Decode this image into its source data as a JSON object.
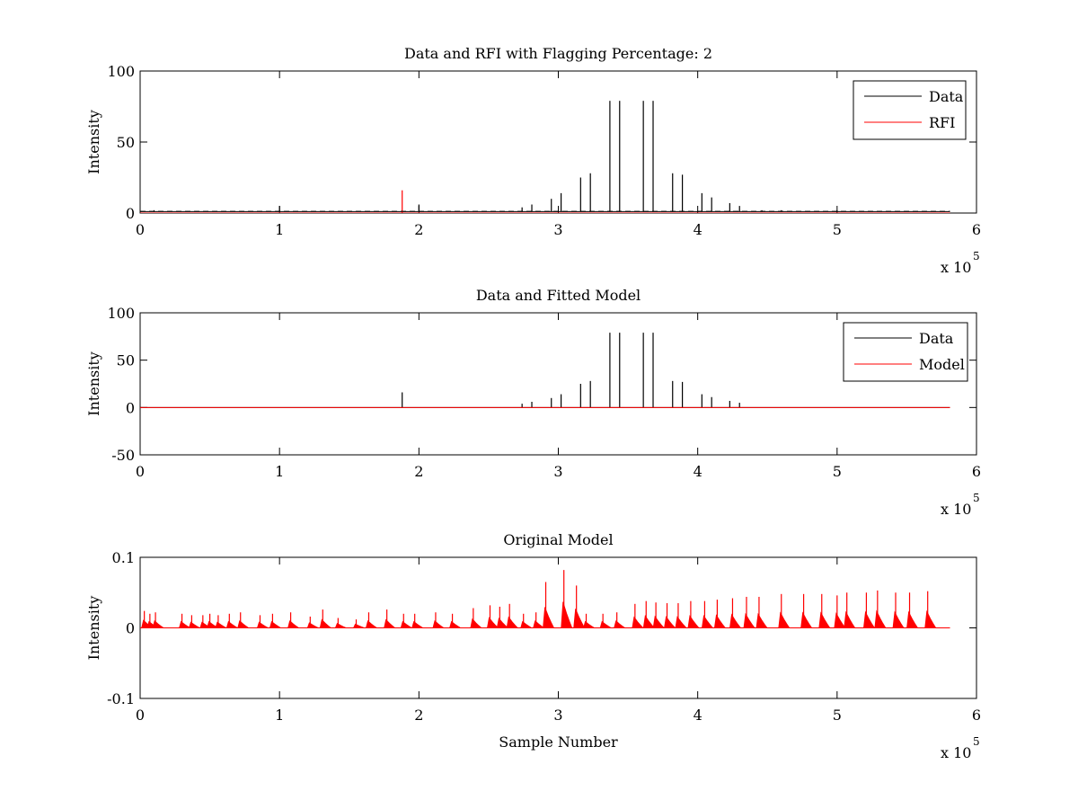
{
  "chart_data": [
    {
      "type": "line",
      "title": "Data and RFI with Flagging Percentage: 2",
      "xlabel": "",
      "ylabel": "Intensity",
      "xlim": [
        0,
        600000
      ],
      "ylim": [
        0,
        100
      ],
      "xtick_labels": [
        "0",
        "1",
        "2",
        "3",
        "4",
        "5",
        "6"
      ],
      "ytick_labels": [
        "0",
        "50",
        "100"
      ],
      "x_exponent": "x 10",
      "x_exponent_power": "5",
      "grid": false,
      "legend_position": "top-right",
      "series": [
        {
          "name": "Data",
          "color": "#000000",
          "baseline": 1,
          "spikes": [
            {
              "x": 10000,
              "y": 2
            },
            {
              "x": 100000,
              "y": 5
            },
            {
              "x": 200000,
              "y": 6
            },
            {
              "x": 274000,
              "y": 4
            },
            {
              "x": 281000,
              "y": 6
            },
            {
              "x": 295000,
              "y": 10
            },
            {
              "x": 302000,
              "y": 14
            },
            {
              "x": 316000,
              "y": 25
            },
            {
              "x": 323000,
              "y": 28
            },
            {
              "x": 337000,
              "y": 79
            },
            {
              "x": 344000,
              "y": 79
            },
            {
              "x": 361000,
              "y": 79
            },
            {
              "x": 368000,
              "y": 79
            },
            {
              "x": 382000,
              "y": 28
            },
            {
              "x": 389000,
              "y": 27
            },
            {
              "x": 403000,
              "y": 14
            },
            {
              "x": 410000,
              "y": 11
            },
            {
              "x": 423000,
              "y": 7
            },
            {
              "x": 430000,
              "y": 5
            },
            {
              "x": 446000,
              "y": 2
            },
            {
              "x": 460000,
              "y": 2
            },
            {
              "x": 500000,
              "y": 2
            }
          ]
        },
        {
          "name": "RFI",
          "color": "#ff0000",
          "baseline": 0,
          "spikes": [
            {
              "x": 188000,
              "y": 16
            }
          ]
        }
      ],
      "x_end": 581000
    },
    {
      "type": "line",
      "title": "Data and Fitted Model",
      "xlabel": "",
      "ylabel": "Intensity",
      "xlim": [
        0,
        600000
      ],
      "ylim": [
        -50,
        100
      ],
      "xtick_labels": [
        "0",
        "1",
        "2",
        "3",
        "4",
        "5",
        "6"
      ],
      "ytick_labels": [
        "-50",
        "0",
        "50",
        "100"
      ],
      "x_exponent": "x 10",
      "x_exponent_power": "5",
      "grid": false,
      "legend_position": "top-right",
      "series": [
        {
          "name": "Data",
          "color": "#000000",
          "baseline": 0,
          "spikes": [
            {
              "x": 188000,
              "y": 16
            },
            {
              "x": 274000,
              "y": 4
            },
            {
              "x": 281000,
              "y": 6
            },
            {
              "x": 295000,
              "y": 10
            },
            {
              "x": 302000,
              "y": 14
            },
            {
              "x": 316000,
              "y": 25
            },
            {
              "x": 323000,
              "y": 28
            },
            {
              "x": 337000,
              "y": 79
            },
            {
              "x": 344000,
              "y": 79
            },
            {
              "x": 361000,
              "y": 79
            },
            {
              "x": 368000,
              "y": 79
            },
            {
              "x": 382000,
              "y": 28
            },
            {
              "x": 389000,
              "y": 27
            },
            {
              "x": 403000,
              "y": 14
            },
            {
              "x": 410000,
              "y": 11
            },
            {
              "x": 423000,
              "y": 7
            },
            {
              "x": 430000,
              "y": 5
            }
          ]
        },
        {
          "name": "Model",
          "color": "#ff0000",
          "baseline": 0,
          "spikes": []
        }
      ],
      "x_end": 581000
    },
    {
      "type": "line",
      "title": "Original Model",
      "xlabel": "Sample Number",
      "ylabel": "Intensity",
      "xlim": [
        0,
        600000
      ],
      "ylim": [
        -0.1,
        0.1
      ],
      "xtick_labels": [
        "0",
        "1",
        "2",
        "3",
        "4",
        "5",
        "6"
      ],
      "ytick_labels": [
        "-0.1",
        "0",
        "0.1"
      ],
      "x_exponent": "x 10",
      "x_exponent_power": "5",
      "grid": false,
      "series": [
        {
          "color": "#ff0000",
          "baseline": 0,
          "peaks": [
            {
              "x": 3000,
              "y": 0.024
            },
            {
              "x": 7000,
              "y": 0.02
            },
            {
              "x": 11000,
              "y": 0.022
            },
            {
              "x": 30000,
              "y": 0.02
            },
            {
              "x": 37000,
              "y": 0.018
            },
            {
              "x": 45000,
              "y": 0.018
            },
            {
              "x": 50000,
              "y": 0.02
            },
            {
              "x": 56000,
              "y": 0.018
            },
            {
              "x": 64000,
              "y": 0.02
            },
            {
              "x": 72000,
              "y": 0.022
            },
            {
              "x": 86000,
              "y": 0.018
            },
            {
              "x": 95000,
              "y": 0.02
            },
            {
              "x": 108000,
              "y": 0.022
            },
            {
              "x": 122000,
              "y": 0.016
            },
            {
              "x": 131000,
              "y": 0.026
            },
            {
              "x": 142000,
              "y": 0.014
            },
            {
              "x": 155000,
              "y": 0.012
            },
            {
              "x": 164000,
              "y": 0.022
            },
            {
              "x": 177000,
              "y": 0.026
            },
            {
              "x": 189000,
              "y": 0.02
            },
            {
              "x": 197000,
              "y": 0.02
            },
            {
              "x": 212000,
              "y": 0.022
            },
            {
              "x": 224000,
              "y": 0.02
            },
            {
              "x": 239000,
              "y": 0.028
            },
            {
              "x": 251000,
              "y": 0.032
            },
            {
              "x": 258000,
              "y": 0.03
            },
            {
              "x": 265000,
              "y": 0.034
            },
            {
              "x": 275000,
              "y": 0.02
            },
            {
              "x": 284000,
              "y": 0.022
            },
            {
              "x": 291000,
              "y": 0.065
            },
            {
              "x": 304000,
              "y": 0.082
            },
            {
              "x": 313000,
              "y": 0.06
            },
            {
              "x": 320000,
              "y": 0.02
            },
            {
              "x": 332000,
              "y": 0.02
            },
            {
              "x": 342000,
              "y": 0.022
            },
            {
              "x": 355000,
              "y": 0.034
            },
            {
              "x": 363000,
              "y": 0.038
            },
            {
              "x": 370000,
              "y": 0.036
            },
            {
              "x": 378000,
              "y": 0.035
            },
            {
              "x": 386000,
              "y": 0.035
            },
            {
              "x": 395000,
              "y": 0.038
            },
            {
              "x": 405000,
              "y": 0.038
            },
            {
              "x": 414000,
              "y": 0.04
            },
            {
              "x": 425000,
              "y": 0.042
            },
            {
              "x": 435000,
              "y": 0.044
            },
            {
              "x": 444000,
              "y": 0.044
            },
            {
              "x": 460000,
              "y": 0.048
            },
            {
              "x": 476000,
              "y": 0.048
            },
            {
              "x": 489000,
              "y": 0.048
            },
            {
              "x": 500000,
              "y": 0.046
            },
            {
              "x": 507000,
              "y": 0.05
            },
            {
              "x": 521000,
              "y": 0.05
            },
            {
              "x": 529000,
              "y": 0.053
            },
            {
              "x": 542000,
              "y": 0.05
            },
            {
              "x": 552000,
              "y": 0.05
            },
            {
              "x": 565000,
              "y": 0.052
            }
          ]
        }
      ],
      "x_end": 581000
    }
  ]
}
